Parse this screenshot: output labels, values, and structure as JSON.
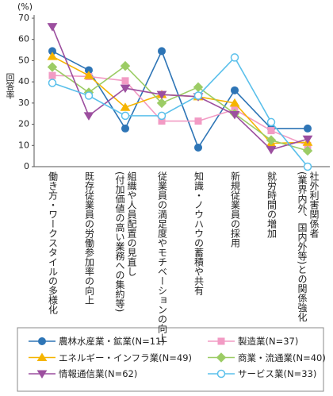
{
  "chart_data": {
    "type": "line",
    "y_unit": "(%)",
    "y_label": "回答率",
    "categories": [
      "働き方・ワークスタイルの多様化",
      "既存従業員の労働参加率の向上",
      "組織や人員配置の見直し\n(付加価値の高い業務への集約等)",
      "従業員の満足度やモチベーションの向上",
      "知識・ノウハウの蓄積や共有",
      "新規従業員の採用",
      "就労時間の増加",
      "社外利害関係者\n(業界内外、国内外等)との関係強化"
    ],
    "series": [
      {
        "name": "農林水産業・鉱業(N=11)",
        "color": "#2e75b6",
        "marker": "circle",
        "values": [
          54.5,
          45.5,
          18,
          54.5,
          9,
          36,
          18,
          18
        ]
      },
      {
        "name": "製造業(N=37)",
        "color": "#f29bc4",
        "marker": "square",
        "values": [
          43,
          42.5,
          40.5,
          21.5,
          21.5,
          27,
          17,
          10
        ]
      },
      {
        "name": "エネルギー・インフラ業(N=49)",
        "color": "#f5b400",
        "marker": "triangle-up",
        "values": [
          52,
          43,
          28,
          34,
          33,
          30,
          11,
          11.5
        ]
      },
      {
        "name": "商業・流通業(N=40)",
        "color": "#9ccc65",
        "marker": "diamond",
        "values": [
          47,
          35,
          47.5,
          30,
          37.5,
          25,
          12.5,
          7.5
        ]
      },
      {
        "name": "情報通信業(N=62)",
        "color": "#9c4f9f",
        "marker": "triangle-down",
        "values": [
          66,
          24,
          37,
          34,
          33,
          24.5,
          8,
          13
        ]
      },
      {
        "name": "サービス業(N=33)",
        "color": "#5bc0eb",
        "marker": "open-circle",
        "values": [
          39.5,
          33.5,
          24,
          24,
          33.5,
          51.5,
          21,
          0
        ]
      }
    ],
    "ylim": [
      0,
      70
    ],
    "yticks": [
      0,
      10,
      20,
      30,
      40,
      50,
      60,
      70
    ]
  }
}
